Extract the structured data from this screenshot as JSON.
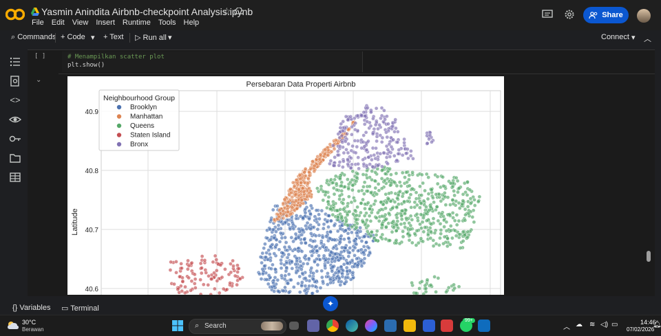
{
  "app": {
    "title": "Yasmin Anindita Airbnb-checkpoint Analysis.ipynb",
    "menu": [
      "File",
      "Edit",
      "View",
      "Insert",
      "Runtime",
      "Tools",
      "Help"
    ],
    "share_label": "Share"
  },
  "toolbar": {
    "commands": "Commands",
    "code": "Code",
    "text": "Text",
    "run_all": "Run all",
    "connect": "Connect"
  },
  "cell": {
    "bracket": "[ ]",
    "code_lines": [
      "# Menampilkan scatter plot",
      "plt.show()"
    ]
  },
  "bottom": {
    "variables": "Variables",
    "terminal": "Terminal"
  },
  "taskbar": {
    "temp": "30°C",
    "weather": "Berawan",
    "search": "Search",
    "badge": "99+",
    "time": "14:46",
    "date": "07/02/2026"
  },
  "chart_data": {
    "type": "scatter",
    "title": "Persebaran Data Properti Airbnb",
    "ylabel": "Latitude",
    "xlabel": "",
    "y_ticks": [
      40.9,
      40.8,
      40.7,
      40.6
    ],
    "ylim": [
      40.58,
      40.935
    ],
    "grid": true,
    "legend_title": "Neighbourhood Group",
    "legend_position": "top-left",
    "series": [
      {
        "name": "Brooklyn",
        "color": "#4c72b0"
      },
      {
        "name": "Manhattan",
        "color": "#dd8452"
      },
      {
        "name": "Queens",
        "color": "#55a868"
      },
      {
        "name": "Staten Island",
        "color": "#c44e52"
      },
      {
        "name": "Bronx",
        "color": "#8172b3"
      }
    ]
  }
}
